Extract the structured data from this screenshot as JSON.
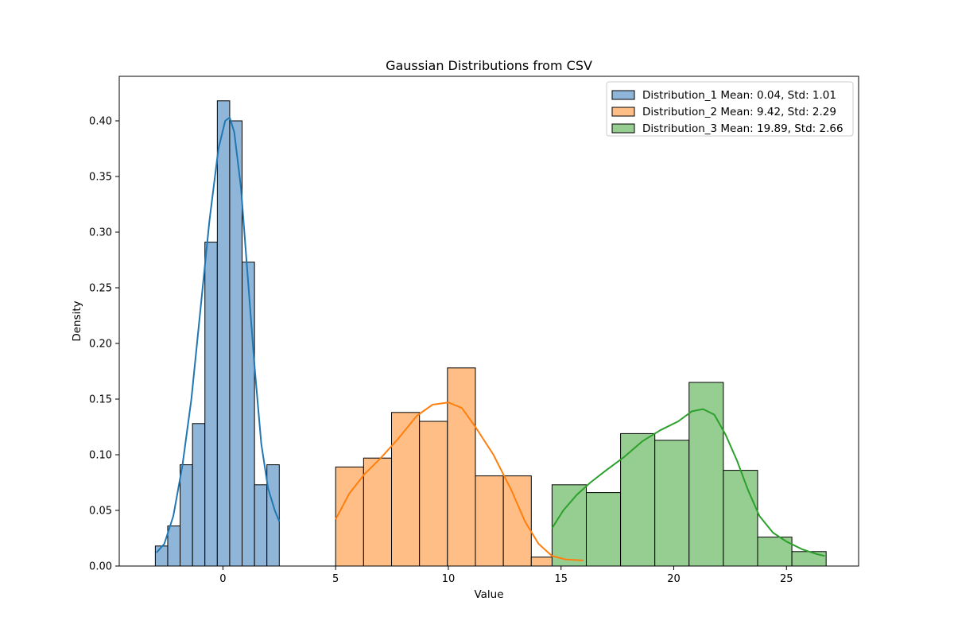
{
  "chart_data": {
    "type": "bar",
    "title": "Gaussian Distributions from CSV",
    "xlabel": "Value",
    "ylabel": "Density",
    "xlim": [
      -4.6,
      28.2
    ],
    "ylim": [
      0,
      0.44
    ],
    "xticks": [
      0,
      5,
      10,
      15,
      20,
      25
    ],
    "yticks": [
      0.0,
      0.05,
      0.1,
      0.15,
      0.2,
      0.25,
      0.3,
      0.35,
      0.4
    ],
    "grid": false,
    "legend_position": "top-right",
    "series": [
      {
        "name": "Distribution_1 Mean: 0.04, Std: 1.01",
        "color": "#1f77b4",
        "fill": "#8fb6d9",
        "bins": [
          [
            -3.0,
            -2.45,
            0.018
          ],
          [
            -2.45,
            -1.9,
            0.036
          ],
          [
            -1.9,
            -1.35,
            0.091
          ],
          [
            -1.35,
            -0.8,
            0.128
          ],
          [
            -0.8,
            -0.25,
            0.291
          ],
          [
            -0.25,
            0.3,
            0.418
          ],
          [
            0.3,
            0.85,
            0.4
          ],
          [
            0.85,
            1.4,
            0.273
          ],
          [
            1.4,
            1.95,
            0.073
          ],
          [
            1.95,
            2.5,
            0.091
          ]
        ],
        "kde": [
          [
            -2.95,
            0.012
          ],
          [
            -2.6,
            0.02
          ],
          [
            -2.2,
            0.045
          ],
          [
            -1.8,
            0.09
          ],
          [
            -1.4,
            0.15
          ],
          [
            -1.0,
            0.23
          ],
          [
            -0.6,
            0.31
          ],
          [
            -0.2,
            0.375
          ],
          [
            0.1,
            0.4
          ],
          [
            0.3,
            0.403
          ],
          [
            0.5,
            0.39
          ],
          [
            0.8,
            0.34
          ],
          [
            1.1,
            0.26
          ],
          [
            1.4,
            0.18
          ],
          [
            1.7,
            0.11
          ],
          [
            2.0,
            0.07
          ],
          [
            2.3,
            0.05
          ],
          [
            2.5,
            0.04
          ]
        ]
      },
      {
        "name": "Distribution_2 Mean: 9.42, Std: 2.29",
        "color": "#ff7f0e",
        "fill": "#ffbe86",
        "bins": [
          [
            5.0,
            6.24,
            0.089
          ],
          [
            6.24,
            7.48,
            0.097
          ],
          [
            7.48,
            8.72,
            0.138
          ],
          [
            8.72,
            9.96,
            0.13
          ],
          [
            9.96,
            11.2,
            0.178
          ],
          [
            11.2,
            12.44,
            0.081
          ],
          [
            12.44,
            13.68,
            0.081
          ],
          [
            13.68,
            14.92,
            0.008
          ],
          [
            14.92,
            16.16,
            0.008
          ]
        ],
        "kde": [
          [
            5.0,
            0.042
          ],
          [
            5.6,
            0.065
          ],
          [
            6.3,
            0.083
          ],
          [
            7.0,
            0.097
          ],
          [
            7.8,
            0.115
          ],
          [
            8.6,
            0.135
          ],
          [
            9.3,
            0.145
          ],
          [
            10.0,
            0.147
          ],
          [
            10.6,
            0.142
          ],
          [
            11.2,
            0.125
          ],
          [
            12.0,
            0.1
          ],
          [
            12.8,
            0.068
          ],
          [
            13.4,
            0.04
          ],
          [
            14.0,
            0.02
          ],
          [
            14.6,
            0.009
          ],
          [
            15.2,
            0.006
          ],
          [
            16.0,
            0.005
          ]
        ]
      },
      {
        "name": "Distribution_3 Mean: 19.89, Std: 2.66",
        "color": "#2ca02c",
        "fill": "#96ce92",
        "bins": [
          [
            14.6,
            16.12,
            0.073
          ],
          [
            16.12,
            17.64,
            0.066
          ],
          [
            17.64,
            19.16,
            0.119
          ],
          [
            19.16,
            20.68,
            0.113
          ],
          [
            20.68,
            22.2,
            0.165
          ],
          [
            22.2,
            23.72,
            0.086
          ],
          [
            23.72,
            25.24,
            0.026
          ],
          [
            25.24,
            26.76,
            0.013
          ]
        ],
        "kde": [
          [
            14.6,
            0.034
          ],
          [
            15.1,
            0.05
          ],
          [
            15.7,
            0.064
          ],
          [
            16.3,
            0.075
          ],
          [
            17.0,
            0.086
          ],
          [
            17.8,
            0.098
          ],
          [
            18.6,
            0.112
          ],
          [
            19.4,
            0.122
          ],
          [
            20.2,
            0.13
          ],
          [
            20.8,
            0.139
          ],
          [
            21.3,
            0.141
          ],
          [
            21.8,
            0.136
          ],
          [
            22.3,
            0.118
          ],
          [
            22.8,
            0.095
          ],
          [
            23.3,
            0.068
          ],
          [
            23.8,
            0.045
          ],
          [
            24.4,
            0.03
          ],
          [
            25.0,
            0.022
          ],
          [
            25.7,
            0.015
          ],
          [
            26.3,
            0.011
          ],
          [
            26.7,
            0.009
          ]
        ]
      }
    ]
  }
}
